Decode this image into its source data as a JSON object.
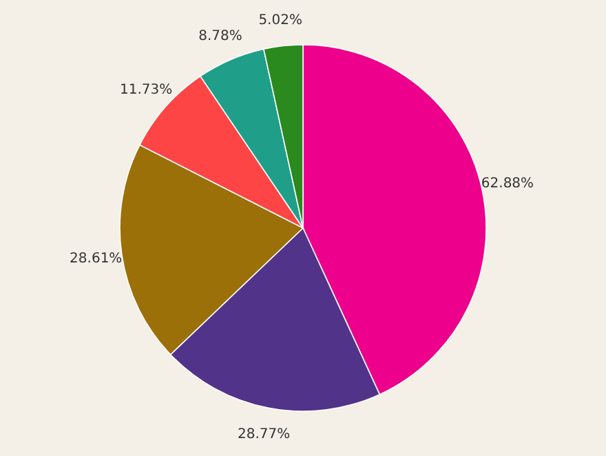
{
  "chart_data": {
    "type": "pie",
    "categories": [
      null,
      null,
      null,
      null,
      null,
      null
    ],
    "values": [
      62.88,
      28.77,
      28.61,
      11.73,
      8.78,
      5.02
    ],
    "value_labels": [
      "62.88%",
      "28.77%",
      "28.61%",
      "11.73%",
      "8.78%",
      "5.02%"
    ],
    "colors": [
      "#ec008c",
      "#52338a",
      "#9c7009",
      "#fd4545",
      "#1f9f8a",
      "#2a8a1e"
    ]
  }
}
